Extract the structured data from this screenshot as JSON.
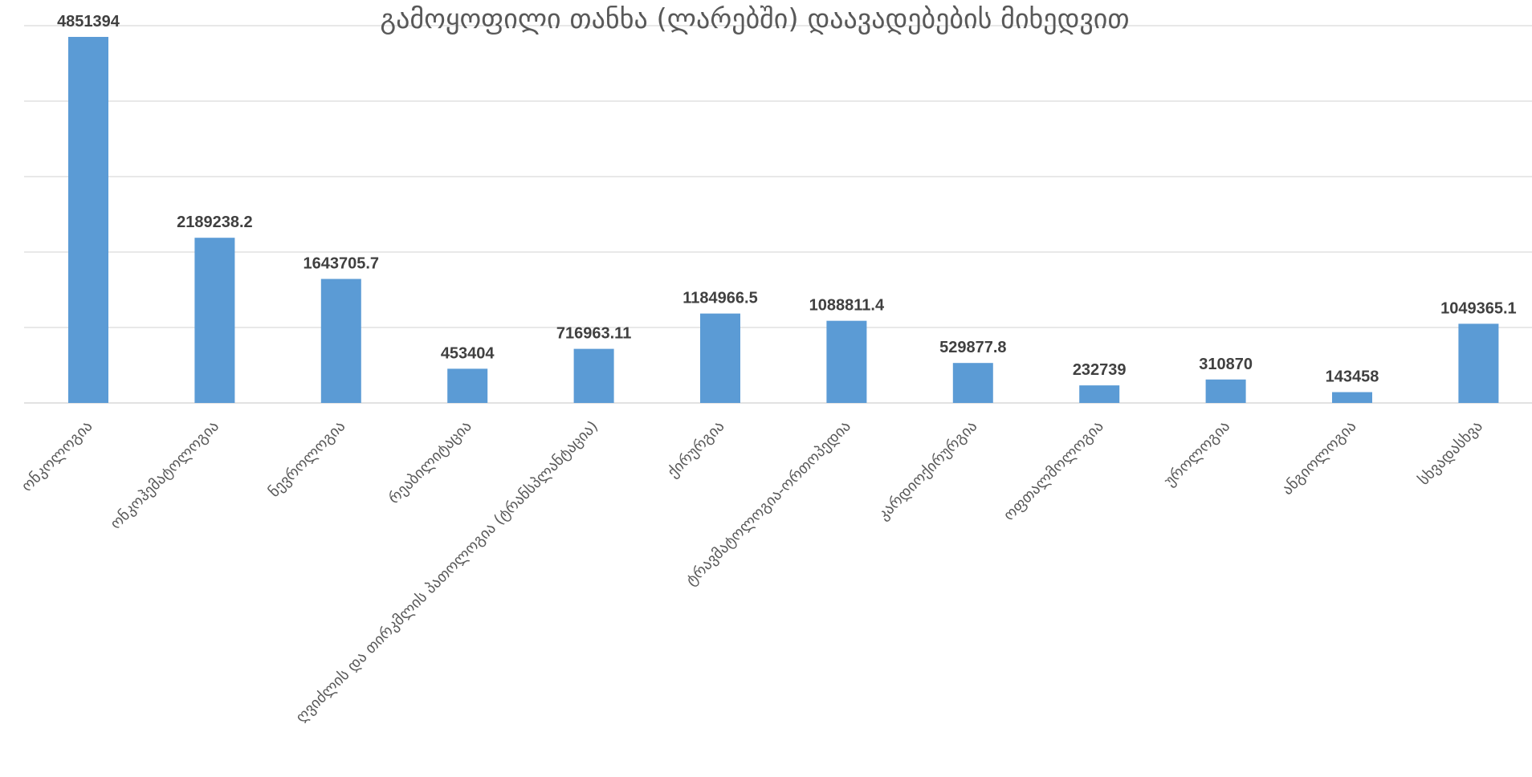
{
  "chart_data": {
    "type": "bar",
    "title": "გამოყოფილი თანხა (ლარებში) დაავადებების მიხედვით",
    "xlabel": "",
    "ylabel": "",
    "ylim": [
      0,
      5000000
    ],
    "grid": true,
    "legend": "none",
    "bar_color": "#5b9bd5",
    "categories": [
      "ონკოლოგია",
      "ონკოჰემატოლოგია",
      "ნევროლოგია",
      "რეაბილიტაცია",
      "ღვიძლის და თირკმლის პათოლოგია (ტრანსპლანტაცია)",
      "ქირურგია",
      "ტრავმატოლოგია-ორთოპედია",
      "კარდიოქირურგია",
      "ოფთალმოლოგია",
      "უროლოგია",
      "ანგიოლოგია",
      "სხვადასხვა"
    ],
    "values": [
      4851394,
      2189238.2,
      1643705.7,
      453404,
      716963.11,
      1184966.5,
      1088811.4,
      529877.8,
      232739,
      310870,
      143458,
      1049365.1
    ],
    "value_labels": [
      "4851394",
      "2189238.2",
      "1643705.7",
      "453404",
      "716963.11",
      "1184966.5",
      "1088811.4",
      "529877.8",
      "232739",
      "310870",
      "143458",
      "1049365.1"
    ]
  }
}
